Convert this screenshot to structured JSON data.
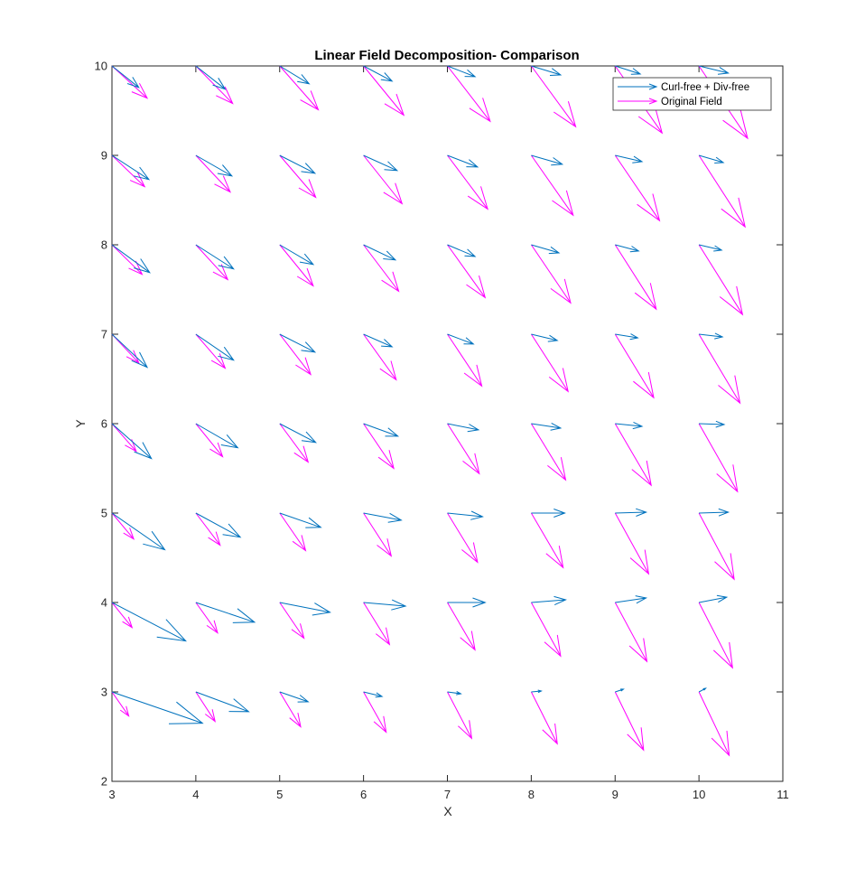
{
  "chart_data": {
    "type": "quiver",
    "title": "Linear Field Decomposition- Comparison",
    "xlabel": "X",
    "ylabel": "Y",
    "xlim": [
      3,
      11
    ],
    "ylim": [
      2,
      10
    ],
    "xticks": [
      "3",
      "4",
      "5",
      "6",
      "7",
      "8",
      "9",
      "10",
      "11"
    ],
    "yticks": [
      "2",
      "3",
      "4",
      "5",
      "6",
      "7",
      "8",
      "9",
      "10"
    ],
    "grid": false,
    "legend_position": "top-right",
    "x": [
      3,
      4,
      5,
      6,
      7,
      8,
      9,
      10
    ],
    "y": [
      3,
      4,
      5,
      6,
      7,
      8,
      9,
      10
    ],
    "series": [
      {
        "name": "Curl-free + Div-free",
        "color": "#0072BD",
        "vectors": {
          "u": [
            [
              1.08,
              0.63,
              0.34,
              0.22,
              0.16,
              0.12,
              0.1,
              0.08
            ],
            [
              0.88,
              0.7,
              0.6,
              0.5,
              0.45,
              0.41,
              0.37,
              0.33
            ],
            [
              0.63,
              0.53,
              0.49,
              0.45,
              0.42,
              0.4,
              0.37,
              0.35
            ],
            [
              0.47,
              0.5,
              0.43,
              0.41,
              0.37,
              0.35,
              0.32,
              0.3
            ],
            [
              0.42,
              0.45,
              0.42,
              0.34,
              0.31,
              0.31,
              0.27,
              0.28
            ],
            [
              0.45,
              0.45,
              0.4,
              0.38,
              0.33,
              0.33,
              0.28,
              0.27
            ],
            [
              0.44,
              0.43,
              0.42,
              0.4,
              0.36,
              0.37,
              0.32,
              0.29
            ],
            [
              0.32,
              0.35,
              0.35,
              0.34,
              0.33,
              0.35,
              0.3,
              0.35
            ]
          ],
          "v": [
            [
              -0.35,
              -0.22,
              -0.11,
              -0.05,
              -0.02,
              0.01,
              0.03,
              0.04
            ],
            [
              -0.43,
              -0.22,
              -0.11,
              -0.04,
              0.0,
              0.03,
              0.05,
              0.06
            ],
            [
              -0.41,
              -0.27,
              -0.16,
              -0.08,
              -0.04,
              0.0,
              0.01,
              0.01
            ],
            [
              -0.39,
              -0.27,
              -0.21,
              -0.14,
              -0.07,
              -0.05,
              -0.03,
              -0.01
            ],
            [
              -0.37,
              -0.29,
              -0.2,
              -0.14,
              -0.11,
              -0.07,
              -0.04,
              -0.03
            ],
            [
              -0.31,
              -0.27,
              -0.22,
              -0.17,
              -0.13,
              -0.09,
              -0.07,
              -0.06
            ],
            [
              -0.27,
              -0.23,
              -0.2,
              -0.17,
              -0.13,
              -0.1,
              -0.07,
              -0.08
            ],
            [
              -0.24,
              -0.26,
              -0.2,
              -0.17,
              -0.12,
              -0.1,
              -0.09,
              -0.08
            ]
          ]
        }
      },
      {
        "name": "Original Field",
        "color": "#FF00FF",
        "vectors": {
          "u": [
            [
              0.2,
              0.23,
              0.25,
              0.27,
              0.29,
              0.31,
              0.34,
              0.36
            ],
            [
              0.24,
              0.26,
              0.29,
              0.31,
              0.33,
              0.35,
              0.38,
              0.4
            ],
            [
              0.26,
              0.29,
              0.31,
              0.33,
              0.36,
              0.38,
              0.4,
              0.42
            ],
            [
              0.29,
              0.32,
              0.34,
              0.36,
              0.38,
              0.41,
              0.43,
              0.46
            ],
            [
              0.32,
              0.35,
              0.37,
              0.39,
              0.41,
              0.44,
              0.46,
              0.49
            ],
            [
              0.36,
              0.38,
              0.4,
              0.42,
              0.45,
              0.47,
              0.49,
              0.52
            ],
            [
              0.39,
              0.41,
              0.43,
              0.46,
              0.48,
              0.5,
              0.53,
              0.55
            ],
            [
              0.42,
              0.44,
              0.46,
              0.48,
              0.51,
              0.53,
              0.56,
              0.58
            ]
          ],
          "v": [
            [
              -0.27,
              -0.33,
              -0.39,
              -0.45,
              -0.52,
              -0.58,
              -0.65,
              -0.71
            ],
            [
              -0.28,
              -0.34,
              -0.4,
              -0.47,
              -0.53,
              -0.6,
              -0.66,
              -0.73
            ],
            [
              -0.29,
              -0.36,
              -0.42,
              -0.48,
              -0.55,
              -0.61,
              -0.68,
              -0.74
            ],
            [
              -0.31,
              -0.37,
              -0.43,
              -0.5,
              -0.56,
              -0.63,
              -0.69,
              -0.76
            ],
            [
              -0.32,
              -0.38,
              -0.45,
              -0.51,
              -0.58,
              -0.64,
              -0.71,
              -0.77
            ],
            [
              -0.33,
              -0.39,
              -0.46,
              -0.52,
              -0.59,
              -0.65,
              -0.72,
              -0.78
            ],
            [
              -0.35,
              -0.41,
              -0.47,
              -0.54,
              -0.6,
              -0.67,
              -0.73,
              -0.8
            ],
            [
              -0.36,
              -0.42,
              -0.49,
              -0.55,
              -0.62,
              -0.68,
              -0.75,
              -0.81
            ]
          ]
        }
      }
    ]
  }
}
